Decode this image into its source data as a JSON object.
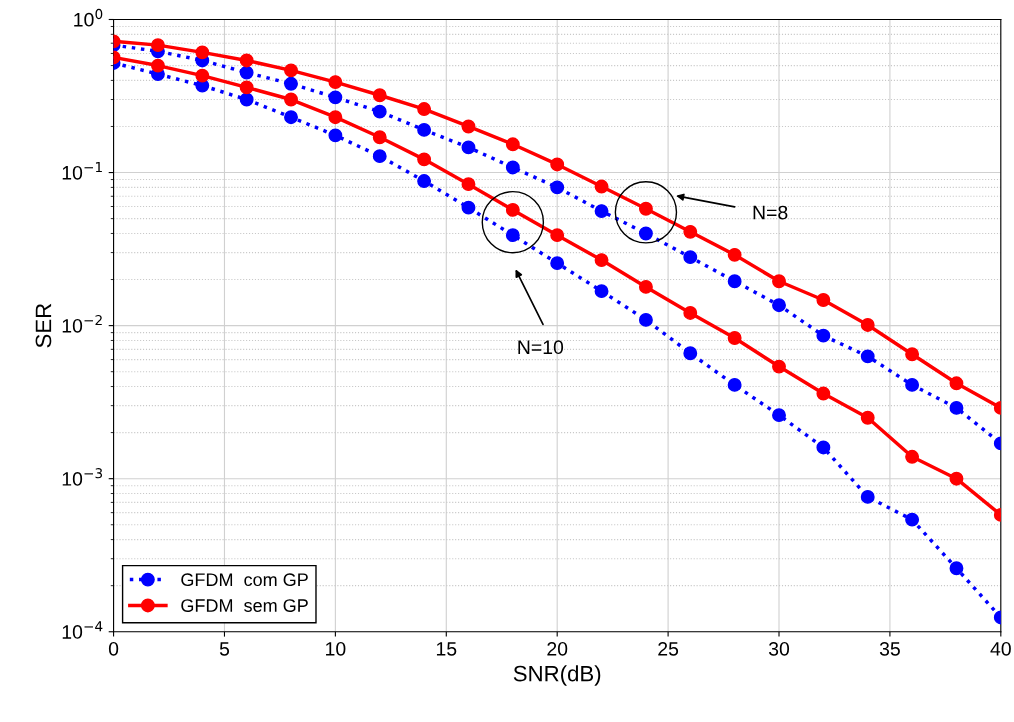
{
  "chart_data": {
    "type": "line",
    "xlabel": "SNR(dB)",
    "ylabel": "SER",
    "log": "y",
    "grid": true,
    "legend": "bottom left",
    "marker": "circle",
    "x": [
      0,
      2,
      4,
      6,
      8,
      10,
      12,
      14,
      16,
      18,
      20,
      22,
      24,
      26,
      28,
      30,
      32,
      34,
      36,
      38,
      40
    ],
    "xlim": [
      0,
      40
    ],
    "xticks": [
      0,
      5,
      10,
      15,
      20,
      25,
      30,
      35,
      40
    ],
    "ylim": [
      0.0001,
      1
    ],
    "yticks": [
      {
        "value": 0.0001,
        "label": "10$^{−4}$"
      },
      {
        "value": 0.001,
        "label": "10$^{−3}$"
      },
      {
        "value": 0.01,
        "label": "10$^{−2}$"
      },
      {
        "value": 0.1,
        "label": "10$^{−1}$"
      },
      {
        "value": 1,
        "label": "10$^{0}$"
      }
    ],
    "series": [
      {
        "name": "GFDM  com GP",
        "color": "#0000ff",
        "line_style": "dotted",
        "values": [
          0.68,
          0.62,
          0.54,
          0.45,
          0.38,
          0.31,
          0.25,
          0.19,
          0.146,
          0.108,
          0.08,
          0.056,
          0.04,
          0.028,
          0.0195,
          0.0136,
          0.0086,
          0.0063,
          0.0041,
          0.0029,
          0.0017
        ]
      },
      {
        "name": "GFDM  sem GP",
        "color": "#ff0000",
        "line_style": "solid",
        "values": [
          0.72,
          0.68,
          0.61,
          0.54,
          0.465,
          0.39,
          0.32,
          0.26,
          0.2,
          0.153,
          0.113,
          0.081,
          0.058,
          0.041,
          0.029,
          0.0195,
          0.0147,
          0.0101,
          0.0065,
          0.0042,
          0.0029
        ]
      },
      {
        "color": "#0000ff",
        "line_style": "dotted",
        "values": [
          0.52,
          0.44,
          0.37,
          0.3,
          0.23,
          0.175,
          0.128,
          0.088,
          0.059,
          0.039,
          0.0256,
          0.0168,
          0.0109,
          0.0066,
          0.0041,
          0.0026,
          0.0016,
          0.00076,
          0.00054,
          0.00026,
          0.000124
        ]
      },
      {
        "color": "#ff0000",
        "line_style": "solid",
        "values": [
          0.565,
          0.5,
          0.43,
          0.36,
          0.3,
          0.23,
          0.17,
          0.122,
          0.084,
          0.057,
          0.039,
          0.0268,
          0.0179,
          0.0121,
          0.0083,
          0.0054,
          0.0036,
          0.0025,
          0.00139,
          0.001,
          0.00058
        ]
      }
    ],
    "annotations": [
      "N=8",
      "N=10"
    ]
  }
}
